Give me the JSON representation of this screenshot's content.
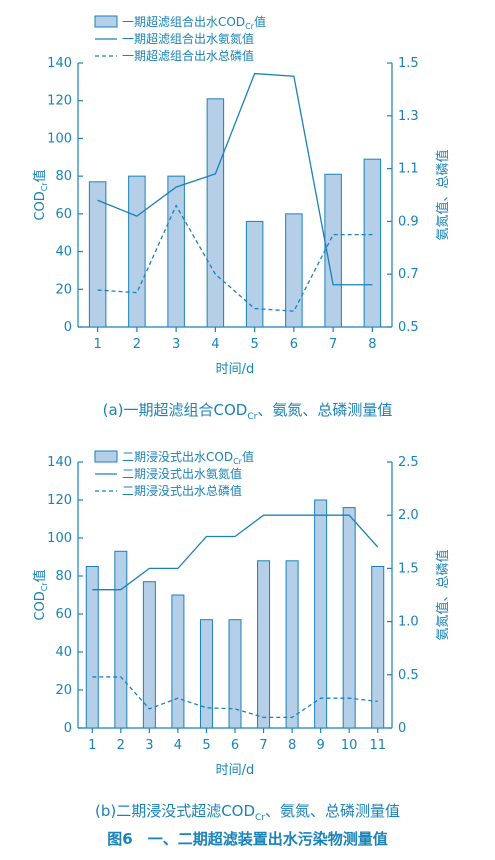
{
  "panels": [
    {
      "caption": "(a)一期超滤组合COD",
      "caption_sub": "Cr",
      "caption_tail": "、氨氮、总磷测量值",
      "chart_data": {
        "type": "bar",
        "categories": [
          "1",
          "2",
          "3",
          "4",
          "5",
          "6",
          "7",
          "8"
        ],
        "xlabel": "时间/d",
        "ylabel_left": "COD",
        "ylabel_left_sub": "Cr",
        "ylabel_left_tail": "值",
        "ylabel_right": "氨氮值、总磷值",
        "ylim_left": [
          0,
          140
        ],
        "yticks_left": [
          0,
          20,
          40,
          60,
          80,
          100,
          120,
          140
        ],
        "ylim_right": [
          0.5,
          1.5
        ],
        "yticks_right": [
          "0.5",
          "0.7",
          "0.9",
          "1.1",
          "1.3",
          "1.5"
        ],
        "series": [
          {
            "name": "一期超滤组合出水COD",
            "name_sub": "Cr",
            "name_tail": "值",
            "kind": "bar",
            "axis": "left",
            "values": [
              77,
              80,
              80,
              121,
              56,
              60,
              81,
              89
            ]
          },
          {
            "name": "一期超滤组合出水氨氮值",
            "kind": "line",
            "axis": "right",
            "values": [
              0.98,
              0.92,
              1.03,
              1.08,
              1.46,
              1.45,
              0.66,
              0.66
            ]
          },
          {
            "name": "一期超滤组合出水总磷值",
            "kind": "dashed",
            "axis": "right",
            "values": [
              0.64,
              0.63,
              0.96,
              0.7,
              0.57,
              0.56,
              0.85,
              0.85
            ]
          }
        ],
        "legend": "top-left",
        "grid": false
      }
    },
    {
      "caption": "(b)二期浸没式超滤COD",
      "caption_sub": "Cr",
      "caption_tail": "、氨氮、总磷测量值",
      "chart_data": {
        "type": "bar",
        "categories": [
          "1",
          "2",
          "3",
          "4",
          "5",
          "6",
          "7",
          "8",
          "9",
          "10",
          "11"
        ],
        "xlabel": "时间/d",
        "ylabel_left": "COD",
        "ylabel_left_sub": "Cr",
        "ylabel_left_tail": "值",
        "ylabel_right": "氨氮值、总磷值",
        "ylim_left": [
          0,
          140
        ],
        "yticks_left": [
          0,
          20,
          40,
          60,
          80,
          100,
          120,
          140
        ],
        "ylim_right": [
          0,
          2.5
        ],
        "yticks_right": [
          "0",
          "0.5",
          "1.0",
          "1.5",
          "2.0",
          "2.5"
        ],
        "series": [
          {
            "name": "二期浸没式出水COD",
            "name_sub": "Cr",
            "name_tail": "值",
            "kind": "bar",
            "axis": "left",
            "values": [
              85,
              93,
              77,
              70,
              57,
              57,
              88,
              88,
              120,
              116,
              85
            ]
          },
          {
            "name": "二期浸没式出水氨氮值",
            "kind": "line",
            "axis": "right",
            "values": [
              1.3,
              1.3,
              1.5,
              1.5,
              1.8,
              1.8,
              2.0,
              2.0,
              2.0,
              2.0,
              1.7
            ]
          },
          {
            "name": "二期浸没式出水总磷值",
            "kind": "dashed",
            "axis": "right",
            "values": [
              0.48,
              0.48,
              0.18,
              0.28,
              0.19,
              0.18,
              0.1,
              0.1,
              0.28,
              0.28,
              0.25
            ]
          }
        ],
        "legend": "top-left",
        "grid": false
      }
    }
  ],
  "figure_caption": "图6　一、二期超滤装置出水污染物测量值",
  "colors": {
    "accent": "#1a82b8",
    "bar_fill": "#b5cfe8"
  }
}
